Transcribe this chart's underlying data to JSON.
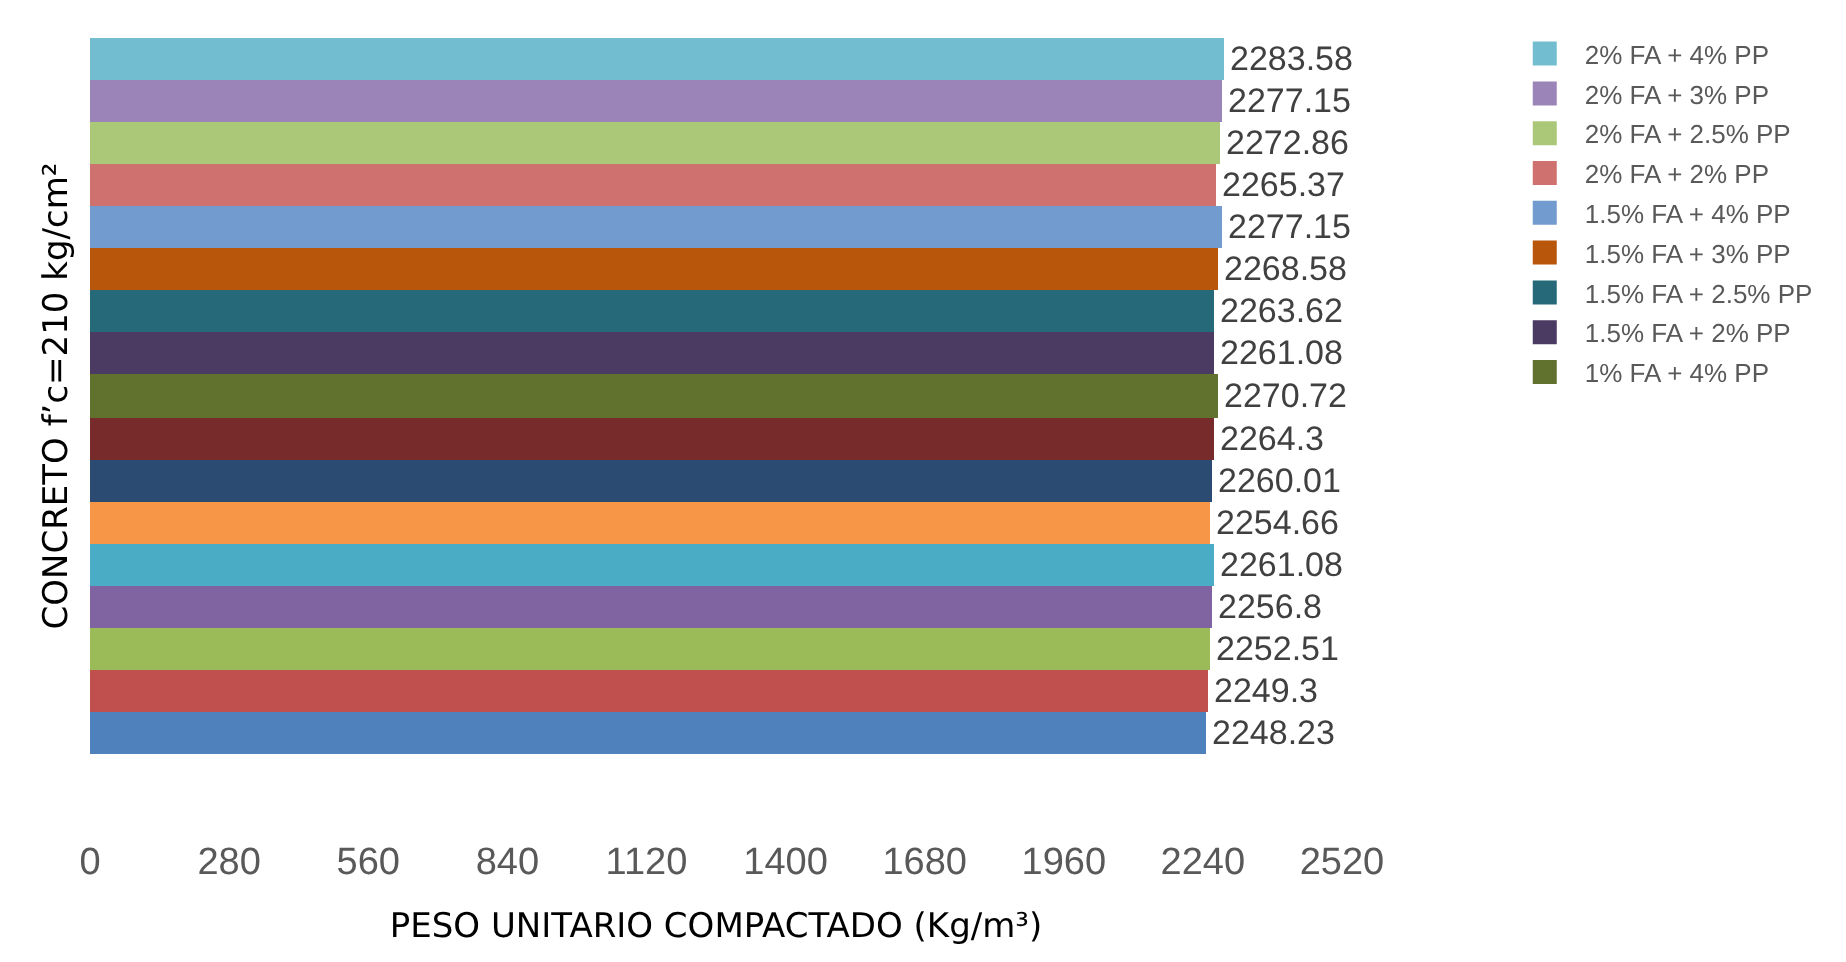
{
  "chart_data": {
    "type": "bar",
    "orientation": "horizontal",
    "ylabel": "CONCRETO f’c=210 kg/cm²",
    "xlabel": "PESO UNITARIO COMPACTADO (Kg/m³)",
    "categories": [
      null
    ],
    "series": [
      {
        "name": "2% FA + 4% PP",
        "color": "#72bdd0",
        "values": [
          2283.58
        ]
      },
      {
        "name": "2% FA + 3% PP",
        "color": "#9b85b8",
        "values": [
          2277.15
        ]
      },
      {
        "name": "2% FA + 2.5% PP",
        "color": "#abc878",
        "values": [
          2272.86
        ]
      },
      {
        "name": "2% FA + 2% PP",
        "color": "#cf726f",
        "values": [
          2265.37
        ]
      },
      {
        "name": "1.5% FA + 4% PP",
        "color": "#729bcf",
        "values": [
          2277.15
        ]
      },
      {
        "name": "1.5% FA + 3% PP",
        "color": "#b8560c",
        "values": [
          2268.58
        ]
      },
      {
        "name": "1.5% FA + 2.5% PP",
        "color": "#266a7a",
        "values": [
          2263.62
        ]
      },
      {
        "name": "1.5% FA + 2% PP",
        "color": "#4b3a62",
        "values": [
          2261.08
        ]
      },
      {
        "name": "1% FA + 4% PP",
        "color": "#61722f",
        "values": [
          2270.72
        ]
      },
      {
        "color": "#772b2a",
        "values": [
          2264.3
        ]
      },
      {
        "color": "#2b4b73",
        "values": [
          2260.01
        ]
      },
      {
        "color": "#f79646",
        "values": [
          2254.66
        ]
      },
      {
        "color": "#4bacc6",
        "values": [
          2261.08
        ]
      },
      {
        "color": "#8064a2",
        "values": [
          2256.8
        ]
      },
      {
        "color": "#9bbb59",
        "values": [
          2252.51
        ]
      },
      {
        "color": "#c0504d",
        "values": [
          2249.3
        ]
      },
      {
        "color": "#4f81bd",
        "values": [
          2248.23
        ]
      }
    ],
    "xlim": [
      0,
      2520
    ],
    "xticks": [
      0,
      280,
      560,
      840,
      1120,
      1400,
      1680,
      1960,
      2240,
      2520
    ],
    "data_labels": true,
    "legend": "right"
  }
}
